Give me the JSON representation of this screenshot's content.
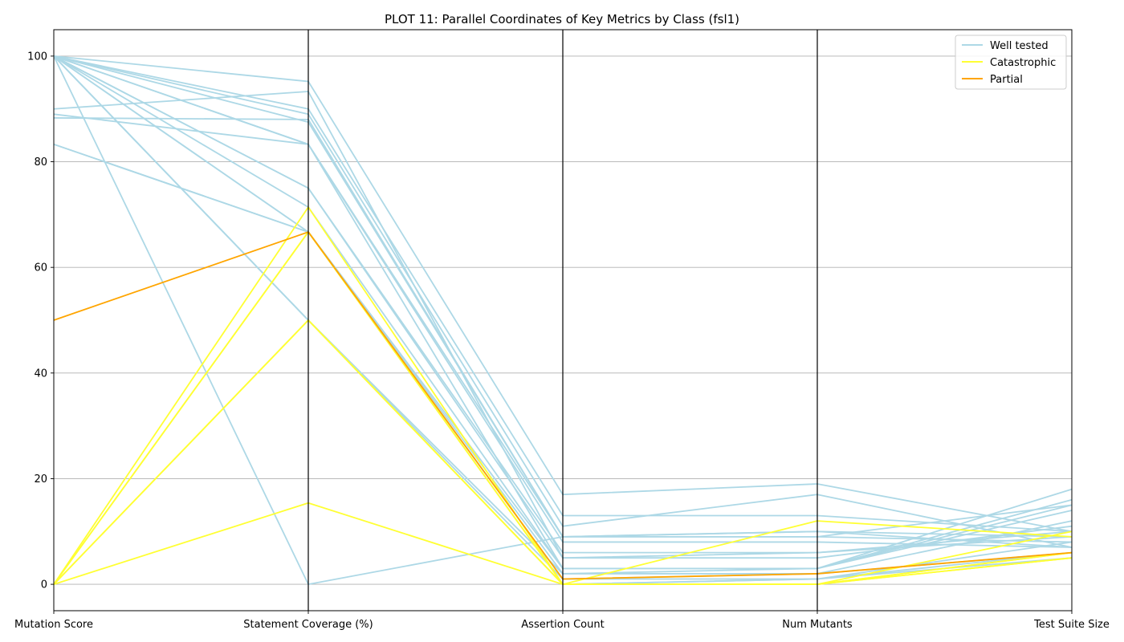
{
  "chart_data": {
    "type": "parallel-coordinates",
    "title": "PLOT 11: Parallel Coordinates of Key Metrics by Class (fsl1)",
    "axes": [
      "Mutation Score",
      "Statement Coverage (%)",
      "Assertion Count",
      "Num Mutants",
      "Test Suite Size"
    ],
    "ylim": [
      -5,
      105
    ],
    "yticks": [
      0,
      20,
      40,
      60,
      80,
      100
    ],
    "grid": "horizontal",
    "legend_position": "top-right",
    "classes": [
      {
        "name": "Well tested",
        "color": "#add8e6"
      },
      {
        "name": "Catastrophic",
        "color": "#ffff33"
      },
      {
        "name": "Partial",
        "color": "#ffa500"
      }
    ],
    "series": [
      {
        "class": "Well tested",
        "values": [
          100,
          95.2,
          17,
          19,
          10
        ]
      },
      {
        "class": "Well tested",
        "values": [
          100,
          90,
          13,
          13,
          10
        ]
      },
      {
        "class": "Well tested",
        "values": [
          100,
          89,
          11,
          17,
          7
        ]
      },
      {
        "class": "Well tested",
        "values": [
          100,
          87.5,
          9,
          10,
          9
        ]
      },
      {
        "class": "Well tested",
        "values": [
          100,
          83.3,
          9,
          9,
          8
        ]
      },
      {
        "class": "Well tested",
        "values": [
          100,
          83.3,
          8,
          8,
          7
        ]
      },
      {
        "class": "Well tested",
        "values": [
          100,
          75,
          6,
          6,
          10
        ]
      },
      {
        "class": "Well tested",
        "values": [
          100,
          75,
          5,
          5,
          11
        ]
      },
      {
        "class": "Well tested",
        "values": [
          100,
          71.4,
          3,
          3,
          14
        ]
      },
      {
        "class": "Well tested",
        "values": [
          100,
          66.7,
          3,
          3,
          15
        ]
      },
      {
        "class": "Well tested",
        "values": [
          100,
          66.7,
          2,
          2,
          12
        ]
      },
      {
        "class": "Well tested",
        "values": [
          100,
          50,
          2,
          3,
          16
        ]
      },
      {
        "class": "Well tested",
        "values": [
          100,
          50,
          1,
          1,
          8
        ]
      },
      {
        "class": "Well tested",
        "values": [
          100,
          50,
          0,
          1,
          6
        ]
      },
      {
        "class": "Well tested",
        "values": [
          100,
          0,
          9,
          10,
          7
        ]
      },
      {
        "class": "Well tested",
        "values": [
          90,
          93.3,
          5,
          6,
          9
        ]
      },
      {
        "class": "Well tested",
        "values": [
          89,
          83.3,
          3,
          3,
          18
        ]
      },
      {
        "class": "Well tested",
        "values": [
          88.3,
          88,
          9,
          9,
          15
        ]
      },
      {
        "class": "Well tested",
        "values": [
          83.3,
          66.7,
          1,
          2,
          6
        ]
      },
      {
        "class": "Well tested",
        "values": [
          83.3,
          66.7,
          0,
          1,
          5
        ]
      },
      {
        "class": "Catastrophic",
        "values": [
          0,
          71.4,
          0,
          12,
          9
        ]
      },
      {
        "class": "Catastrophic",
        "values": [
          0,
          66.7,
          0,
          0,
          6
        ]
      },
      {
        "class": "Catastrophic",
        "values": [
          0,
          66.7,
          0,
          0,
          5
        ]
      },
      {
        "class": "Catastrophic",
        "values": [
          0,
          50,
          0,
          0,
          10
        ]
      },
      {
        "class": "Catastrophic",
        "values": [
          0,
          50,
          0,
          0,
          6
        ]
      },
      {
        "class": "Catastrophic",
        "values": [
          0,
          15.4,
          0,
          0,
          5
        ]
      },
      {
        "class": "Partial",
        "values": [
          50,
          66.7,
          1,
          2,
          6
        ]
      }
    ]
  }
}
